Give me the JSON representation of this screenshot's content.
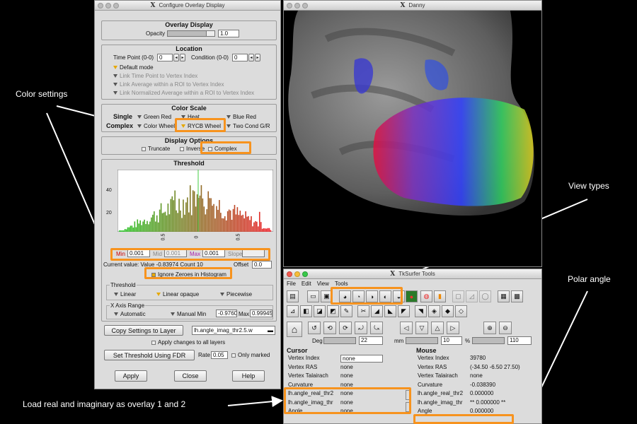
{
  "annotations": {
    "color_settings": "Color settings",
    "view_types": "View types",
    "polar_angle": "Polar angle",
    "load_overlays": "Load real and imaginary as overlay 1 and 2"
  },
  "overlay_window": {
    "title": "Configure Overlay Display",
    "overlay_display": {
      "title": "Overlay Display",
      "opacity_label": "Opacity",
      "opacity_value": "1.0"
    },
    "location": {
      "title": "Location",
      "time_point_label": "Time Point (0-0)",
      "time_point_value": "0",
      "condition_label": "Condition (0-0)",
      "condition_value": "0",
      "default_mode": "Default mode",
      "link1": "Link Time Point to Vertex Index",
      "link2": "Link Average within a ROI to Vertex Index",
      "link3": "Link Normalized Average within a ROI to Vertex Index"
    },
    "color_scale": {
      "title": "Color Scale",
      "single": "Single",
      "complex": "Complex",
      "green_red": "Green Red",
      "heat": "Heat",
      "blue_red": "Blue Red",
      "color_wheel": "Color Wheel",
      "rycb_wheel": "RYCB Wheel",
      "two_cond": "Two Cond G/R"
    },
    "display_options": {
      "title": "Display Options",
      "truncate": "Truncate",
      "inverse": "Inverse",
      "complex": "Complex"
    },
    "threshold": {
      "title": "Threshold",
      "y_ticks": [
        "40",
        "20"
      ],
      "x_ticks": [
        "0.5",
        "0",
        "0.5"
      ],
      "min_label": "Min",
      "min_value": "0.001",
      "mid_label": "Mid",
      "mid_value": "0.001",
      "max_label": "Max",
      "max_value": "0.001",
      "slope_label": "Slope",
      "slope_value": "",
      "current_value": "Current value: Value -0.83974 Count 10",
      "offset_label": "Offset",
      "offset_value": "0.0",
      "ignore_zeroes": "Ignore Zeroes in Histogram",
      "threshold_sub": "Threshold",
      "linear": "Linear",
      "linear_opaque": "Linear opaque",
      "piecewise": "Piecewise",
      "x_axis_range": "X Axis Range",
      "automatic": "Automatic",
      "manual_min": "Manual Min",
      "manual_min_value": "-0.9760",
      "max_label2": "Max",
      "max_value2": "0.99945"
    },
    "copy_settings": "Copy Settings to Layer",
    "layer_select": "lh.angle_imag_thr2.5.w",
    "apply_all": "Apply changes to all layers",
    "set_threshold": "Set Threshold Using FDR",
    "rate_label": "Rate",
    "rate_value": "0.05",
    "only_marked": "Only marked",
    "apply": "Apply",
    "close": "Close",
    "help": "Help"
  },
  "danny_window": {
    "title": "Danny"
  },
  "tksurfer_window": {
    "title": "TkSurfer Tools",
    "menu": [
      "File",
      "Edit",
      "View",
      "Tools"
    ],
    "deg_label": "Deg",
    "deg_value": "22",
    "mm_label": "mm",
    "mm_value": "10",
    "pct_label": "%",
    "pct_value": "110",
    "cursor": {
      "title": "Cursor",
      "rows": [
        {
          "label": "Vertex Index",
          "value": "none"
        },
        {
          "label": "Vertex RAS",
          "value": "none"
        },
        {
          "label": "Vertex Talairach",
          "value": "none"
        },
        {
          "label": "Curvature",
          "value": "none"
        },
        {
          "label": "lh.angle_real_thr2",
          "value": "none"
        },
        {
          "label": "lh.angle_imag_thr",
          "value": "none"
        },
        {
          "label": "Angle",
          "value": "none"
        }
      ]
    },
    "mouse": {
      "title": "Mouse",
      "rows": [
        {
          "label": "Vertex Index",
          "value": "39780"
        },
        {
          "label": "Vertex RAS",
          "value": "(-34.50  -6.50  27.50)"
        },
        {
          "label": "Vertex Talairach",
          "value": "none"
        },
        {
          "label": "Curvature",
          "value": "-0.038390"
        },
        {
          "label": "lh.angle_real_thr2",
          "value": "0.000000"
        },
        {
          "label": "lh.angle_imag_thr",
          "value": "** 0.000000 **"
        },
        {
          "label": "Angle",
          "value": "0.000000"
        }
      ]
    }
  },
  "colors": {
    "highlight": "#f7931e",
    "annotation_text": "#ffffff"
  }
}
